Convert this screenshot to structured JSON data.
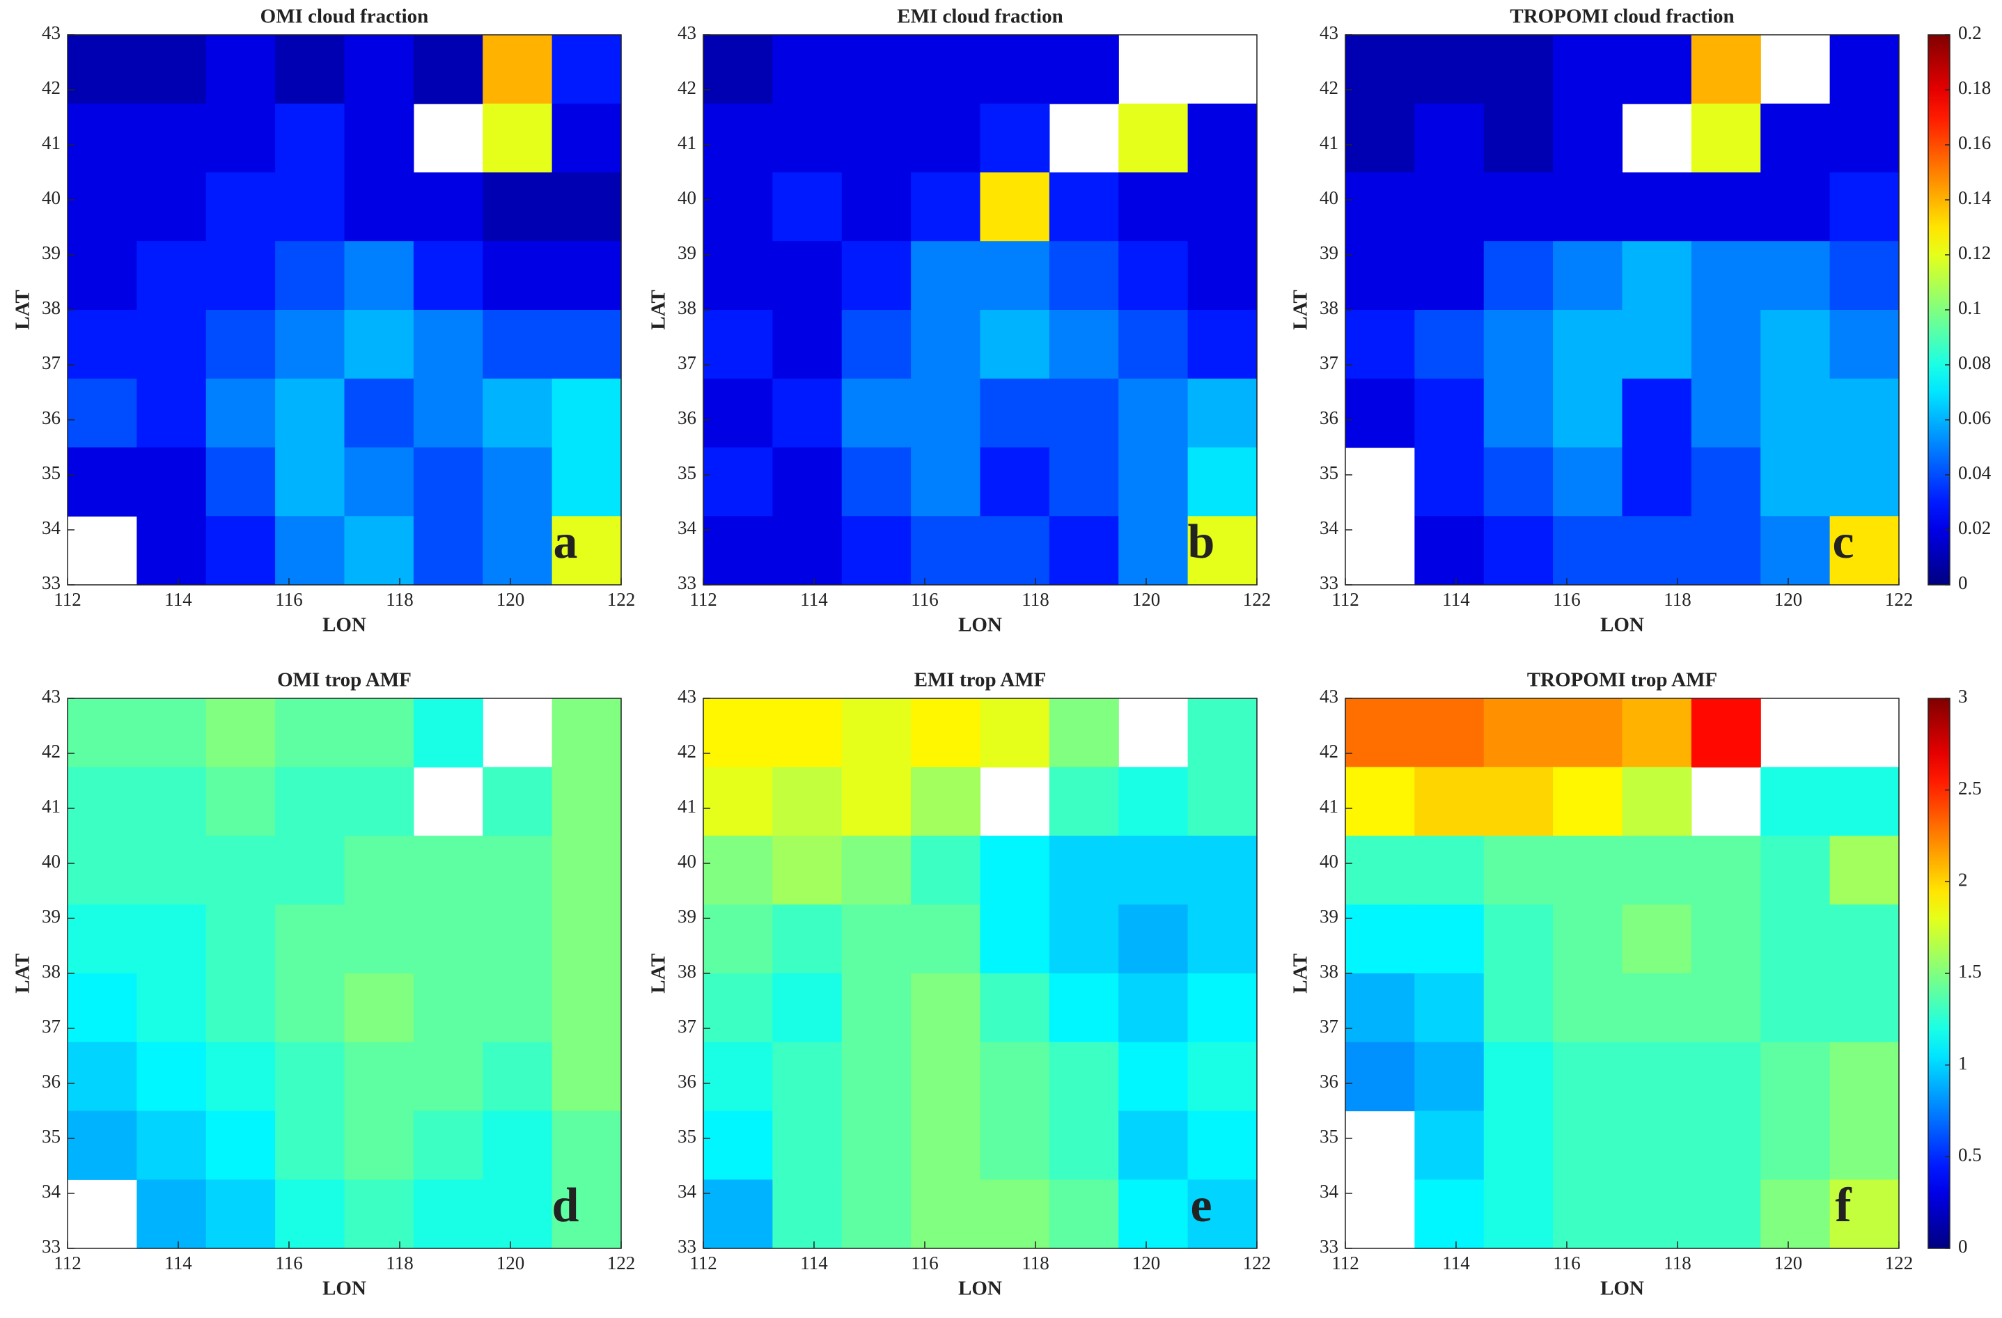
{
  "chart_data": [
    {
      "type": "heatmap",
      "title": "OMI cloud fraction",
      "xlabel": "LON",
      "ylabel": "LAT",
      "label": "a",
      "xlim": [
        112,
        122
      ],
      "ylim": [
        33,
        43
      ],
      "xticks": [
        112,
        114,
        116,
        118,
        120,
        122
      ],
      "yticks": [
        33,
        34,
        35,
        36,
        37,
        38,
        39,
        40,
        41,
        42,
        43
      ],
      "colormap": "jet",
      "clim": [
        0,
        0.2
      ],
      "z": [
        [
          0.01,
          0.01,
          0.02,
          0.01,
          0.02,
          0.01,
          0.14,
          0.03
        ],
        [
          0.02,
          0.02,
          0.02,
          0.03,
          0.02,
          null,
          0.12,
          0.02
        ],
        [
          0.02,
          0.02,
          0.03,
          0.03,
          0.02,
          0.02,
          0.01,
          0.01
        ],
        [
          0.02,
          0.03,
          0.03,
          0.04,
          0.05,
          0.03,
          0.02,
          0.02
        ],
        [
          0.03,
          0.03,
          0.04,
          0.05,
          0.06,
          0.05,
          0.04,
          0.04
        ],
        [
          0.04,
          0.03,
          0.05,
          0.06,
          0.04,
          0.05,
          0.06,
          0.07
        ],
        [
          0.02,
          0.02,
          0.04,
          0.06,
          0.05,
          0.04,
          0.05,
          0.07
        ],
        [
          null,
          0.02,
          0.03,
          0.05,
          0.06,
          0.04,
          0.05,
          0.12
        ]
      ]
    },
    {
      "type": "heatmap",
      "title": "EMI cloud fraction",
      "xlabel": "LON",
      "ylabel": "LAT",
      "label": "b",
      "xlim": [
        112,
        122
      ],
      "ylim": [
        33,
        43
      ],
      "xticks": [
        112,
        114,
        116,
        118,
        120,
        122
      ],
      "yticks": [
        33,
        34,
        35,
        36,
        37,
        38,
        39,
        40,
        41,
        42,
        43
      ],
      "colormap": "jet",
      "clim": [
        0,
        0.2
      ],
      "z": [
        [
          0.01,
          0.02,
          0.02,
          0.02,
          0.02,
          0.02,
          null,
          null
        ],
        [
          0.02,
          0.02,
          0.02,
          0.02,
          0.03,
          null,
          0.12,
          0.02
        ],
        [
          0.02,
          0.03,
          0.02,
          0.03,
          0.13,
          0.03,
          0.02,
          0.02
        ],
        [
          0.02,
          0.02,
          0.03,
          0.05,
          0.05,
          0.04,
          0.03,
          0.02
        ],
        [
          0.03,
          0.02,
          0.04,
          0.05,
          0.06,
          0.05,
          0.04,
          0.03
        ],
        [
          0.02,
          0.03,
          0.05,
          0.05,
          0.04,
          0.04,
          0.05,
          0.06
        ],
        [
          0.03,
          0.02,
          0.04,
          0.05,
          0.03,
          0.04,
          0.05,
          0.07
        ],
        [
          0.02,
          0.02,
          0.03,
          0.04,
          0.04,
          0.03,
          0.05,
          0.12
        ]
      ]
    },
    {
      "type": "heatmap",
      "title": "TROPOMI cloud fraction",
      "xlabel": "LON",
      "ylabel": "LAT",
      "label": "c",
      "xlim": [
        112,
        122
      ],
      "ylim": [
        33,
        43
      ],
      "xticks": [
        112,
        114,
        116,
        118,
        120,
        122
      ],
      "yticks": [
        33,
        34,
        35,
        36,
        37,
        38,
        39,
        40,
        41,
        42,
        43
      ],
      "colormap": "jet",
      "clim": [
        0,
        0.2
      ],
      "cticks": [
        0,
        0.02,
        0.04,
        0.06,
        0.08,
        0.1,
        0.12,
        0.14,
        0.16,
        0.18,
        0.2
      ],
      "z": [
        [
          0.01,
          0.01,
          0.01,
          0.02,
          0.02,
          0.14,
          null,
          0.02
        ],
        [
          0.01,
          0.02,
          0.01,
          0.02,
          null,
          0.12,
          0.02,
          0.02
        ],
        [
          0.02,
          0.02,
          0.02,
          0.02,
          0.02,
          0.02,
          0.02,
          0.03
        ],
        [
          0.02,
          0.02,
          0.04,
          0.05,
          0.06,
          0.05,
          0.05,
          0.04
        ],
        [
          0.03,
          0.04,
          0.05,
          0.06,
          0.06,
          0.05,
          0.06,
          0.05
        ],
        [
          0.02,
          0.03,
          0.05,
          0.06,
          0.03,
          0.05,
          0.06,
          0.06
        ],
        [
          null,
          0.03,
          0.04,
          0.05,
          0.03,
          0.04,
          0.06,
          0.06
        ],
        [
          null,
          0.02,
          0.03,
          0.04,
          0.04,
          0.04,
          0.05,
          0.13
        ]
      ]
    },
    {
      "type": "heatmap",
      "title": "OMI trop AMF",
      "xlabel": "LON",
      "ylabel": "LAT",
      "label": "d",
      "xlim": [
        112,
        122
      ],
      "ylim": [
        33,
        43
      ],
      "xticks": [
        112,
        114,
        116,
        118,
        120,
        122
      ],
      "yticks": [
        33,
        34,
        35,
        36,
        37,
        38,
        39,
        40,
        41,
        42,
        43
      ],
      "colormap": "jet",
      "clim": [
        0,
        3
      ],
      "z": [
        [
          1.4,
          1.4,
          1.5,
          1.4,
          1.4,
          1.2,
          null,
          1.5
        ],
        [
          1.3,
          1.3,
          1.4,
          1.3,
          1.3,
          null,
          1.3,
          1.5
        ],
        [
          1.3,
          1.3,
          1.3,
          1.3,
          1.4,
          1.4,
          1.4,
          1.5
        ],
        [
          1.2,
          1.2,
          1.3,
          1.4,
          1.4,
          1.4,
          1.4,
          1.5
        ],
        [
          1.1,
          1.2,
          1.3,
          1.4,
          1.5,
          1.4,
          1.4,
          1.5
        ],
        [
          1.0,
          1.1,
          1.2,
          1.3,
          1.4,
          1.4,
          1.3,
          1.5
        ],
        [
          0.9,
          1.0,
          1.1,
          1.3,
          1.4,
          1.3,
          1.2,
          1.4
        ],
        [
          null,
          0.9,
          1.0,
          1.2,
          1.3,
          1.2,
          1.2,
          1.4
        ]
      ]
    },
    {
      "type": "heatmap",
      "title": "EMI trop AMF",
      "xlabel": "LON",
      "ylabel": "LAT",
      "label": "e",
      "xlim": [
        112,
        122
      ],
      "ylim": [
        33,
        43
      ],
      "xticks": [
        112,
        114,
        116,
        118,
        120,
        122
      ],
      "yticks": [
        33,
        34,
        35,
        36,
        37,
        38,
        39,
        40,
        41,
        42,
        43
      ],
      "colormap": "jet",
      "clim": [
        0,
        3
      ],
      "z": [
        [
          1.9,
          1.9,
          1.8,
          1.9,
          1.8,
          1.5,
          null,
          1.3
        ],
        [
          1.8,
          1.7,
          1.8,
          1.6,
          null,
          1.3,
          1.2,
          1.3
        ],
        [
          1.5,
          1.6,
          1.5,
          1.3,
          1.1,
          1.0,
          1.0,
          1.0
        ],
        [
          1.4,
          1.3,
          1.4,
          1.4,
          1.1,
          1.0,
          0.9,
          1.0
        ],
        [
          1.3,
          1.2,
          1.4,
          1.5,
          1.3,
          1.1,
          1.0,
          1.1
        ],
        [
          1.2,
          1.3,
          1.4,
          1.5,
          1.4,
          1.3,
          1.1,
          1.2
        ],
        [
          1.1,
          1.3,
          1.4,
          1.5,
          1.4,
          1.3,
          1.0,
          1.1
        ],
        [
          0.9,
          1.3,
          1.4,
          1.5,
          1.5,
          1.4,
          1.1,
          1.0
        ]
      ]
    },
    {
      "type": "heatmap",
      "title": "TROPOMI trop AMF",
      "xlabel": "LON",
      "ylabel": "LAT",
      "label": "f",
      "xlim": [
        112,
        122
      ],
      "ylim": [
        33,
        43
      ],
      "xticks": [
        112,
        114,
        116,
        118,
        120,
        122
      ],
      "yticks": [
        33,
        34,
        35,
        36,
        37,
        38,
        39,
        40,
        41,
        42,
        43
      ],
      "colormap": "jet",
      "clim": [
        0,
        3
      ],
      "cticks": [
        0,
        0.5,
        1,
        1.5,
        2,
        2.5,
        3
      ],
      "z": [
        [
          2.3,
          2.3,
          2.2,
          2.2,
          2.1,
          2.6,
          null,
          null
        ],
        [
          1.9,
          2.0,
          2.0,
          1.9,
          1.7,
          null,
          1.2,
          1.2
        ],
        [
          1.3,
          1.3,
          1.4,
          1.4,
          1.4,
          1.4,
          1.3,
          1.6
        ],
        [
          1.1,
          1.1,
          1.3,
          1.4,
          1.5,
          1.4,
          1.3,
          1.3
        ],
        [
          0.9,
          1.0,
          1.3,
          1.4,
          1.4,
          1.4,
          1.3,
          1.3
        ],
        [
          0.8,
          0.9,
          1.2,
          1.3,
          1.3,
          1.3,
          1.4,
          1.5
        ],
        [
          null,
          1.0,
          1.2,
          1.3,
          1.3,
          1.3,
          1.4,
          1.5
        ],
        [
          null,
          1.1,
          1.2,
          1.3,
          1.3,
          1.3,
          1.5,
          1.7
        ]
      ]
    }
  ]
}
